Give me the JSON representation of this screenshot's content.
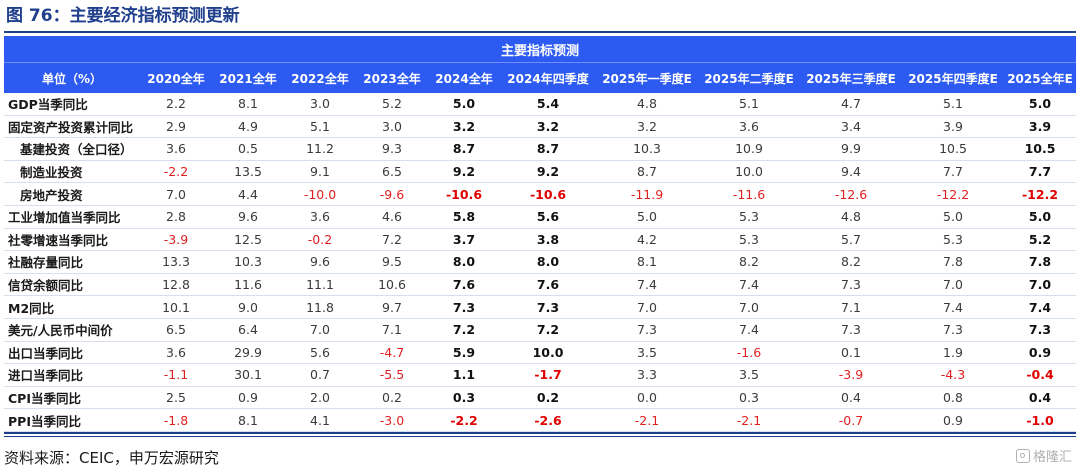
{
  "figure_title": "图 76：主要经济指标预测更新",
  "table": {
    "band_title": "主要指标预测",
    "unit_header": "单位（%）",
    "columns": [
      "2020全年",
      "2021全年",
      "2022全年",
      "2023全年",
      "2024全年",
      "2024年四季度",
      "2025年一季度E",
      "2025年二季度E",
      "2025年三季度E",
      "2025年四季度E",
      "2025全年E"
    ],
    "bold_columns": [
      4,
      5,
      10
    ],
    "rows": [
      {
        "label": "GDP当季同比",
        "sub": false,
        "values": [
          "2.2",
          "8.1",
          "3.0",
          "5.2",
          "5.0",
          "5.4",
          "4.8",
          "5.1",
          "4.7",
          "5.1",
          "5.0"
        ]
      },
      {
        "label": "固定资产投资累计同比",
        "sub": false,
        "values": [
          "2.9",
          "4.9",
          "5.1",
          "3.0",
          "3.2",
          "3.2",
          "3.2",
          "3.6",
          "3.4",
          "3.9",
          "3.9"
        ]
      },
      {
        "label": "基建投资（全口径）",
        "sub": true,
        "values": [
          "3.6",
          "0.5",
          "11.2",
          "9.3",
          "8.7",
          "8.7",
          "10.3",
          "10.9",
          "9.9",
          "10.5",
          "10.5"
        ]
      },
      {
        "label": "制造业投资",
        "sub": true,
        "values": [
          "-2.2",
          "13.5",
          "9.1",
          "6.5",
          "9.2",
          "9.2",
          "8.7",
          "10.0",
          "9.4",
          "7.7",
          "7.7"
        ]
      },
      {
        "label": "房地产投资",
        "sub": true,
        "values": [
          "7.0",
          "4.4",
          "-10.0",
          "-9.6",
          "-10.6",
          "-10.6",
          "-11.9",
          "-11.6",
          "-12.6",
          "-12.2",
          "-12.2"
        ]
      },
      {
        "label": "工业增加值当季同比",
        "sub": false,
        "values": [
          "2.8",
          "9.6",
          "3.6",
          "4.6",
          "5.8",
          "5.6",
          "5.0",
          "5.3",
          "4.8",
          "5.0",
          "5.0"
        ]
      },
      {
        "label": "社零增速当季同比",
        "sub": false,
        "values": [
          "-3.9",
          "12.5",
          "-0.2",
          "7.2",
          "3.7",
          "3.8",
          "4.2",
          "5.3",
          "5.7",
          "5.3",
          "5.2"
        ]
      },
      {
        "label": "社融存量同比",
        "sub": false,
        "values": [
          "13.3",
          "10.3",
          "9.6",
          "9.5",
          "8.0",
          "8.0",
          "8.1",
          "8.2",
          "8.2",
          "7.8",
          "7.8"
        ]
      },
      {
        "label": "信贷余额同比",
        "sub": false,
        "values": [
          "12.8",
          "11.6",
          "11.1",
          "10.6",
          "7.6",
          "7.6",
          "7.4",
          "7.4",
          "7.3",
          "7.0",
          "7.0"
        ]
      },
      {
        "label": "M2同比",
        "sub": false,
        "values": [
          "10.1",
          "9.0",
          "11.8",
          "9.7",
          "7.3",
          "7.3",
          "7.0",
          "7.0",
          "7.1",
          "7.4",
          "7.4"
        ]
      },
      {
        "label": "美元/人民币中间价",
        "sub": false,
        "values": [
          "6.5",
          "6.4",
          "7.0",
          "7.1",
          "7.2",
          "7.2",
          "7.3",
          "7.4",
          "7.3",
          "7.3",
          "7.3"
        ]
      },
      {
        "label": "出口当季同比",
        "sub": false,
        "values": [
          "3.6",
          "29.9",
          "5.6",
          "-4.7",
          "5.9",
          "10.0",
          "3.5",
          "-1.6",
          "0.1",
          "1.9",
          "0.9"
        ]
      },
      {
        "label": "进口当季同比",
        "sub": false,
        "values": [
          "-1.1",
          "30.1",
          "0.7",
          "-5.5",
          "1.1",
          "-1.7",
          "3.3",
          "3.5",
          "-3.9",
          "-4.3",
          "-0.4"
        ]
      },
      {
        "label": "CPI当季同比",
        "sub": false,
        "values": [
          "2.5",
          "0.9",
          "2.0",
          "0.2",
          "0.3",
          "0.2",
          "0.0",
          "0.3",
          "0.4",
          "0.8",
          "0.4"
        ]
      },
      {
        "label": "PPI当季同比",
        "sub": false,
        "values": [
          "-1.8",
          "8.1",
          "4.1",
          "-3.0",
          "-2.2",
          "-2.6",
          "-2.1",
          "-2.1",
          "-0.7",
          "0.9",
          "-1.0"
        ]
      }
    ]
  },
  "source": "资料来源：CEIC，申万宏源研究",
  "watermark": "格隆汇",
  "colors": {
    "header_bg": "#2d5bf2",
    "title": "#1f3e8c",
    "negative": "#e02020"
  }
}
